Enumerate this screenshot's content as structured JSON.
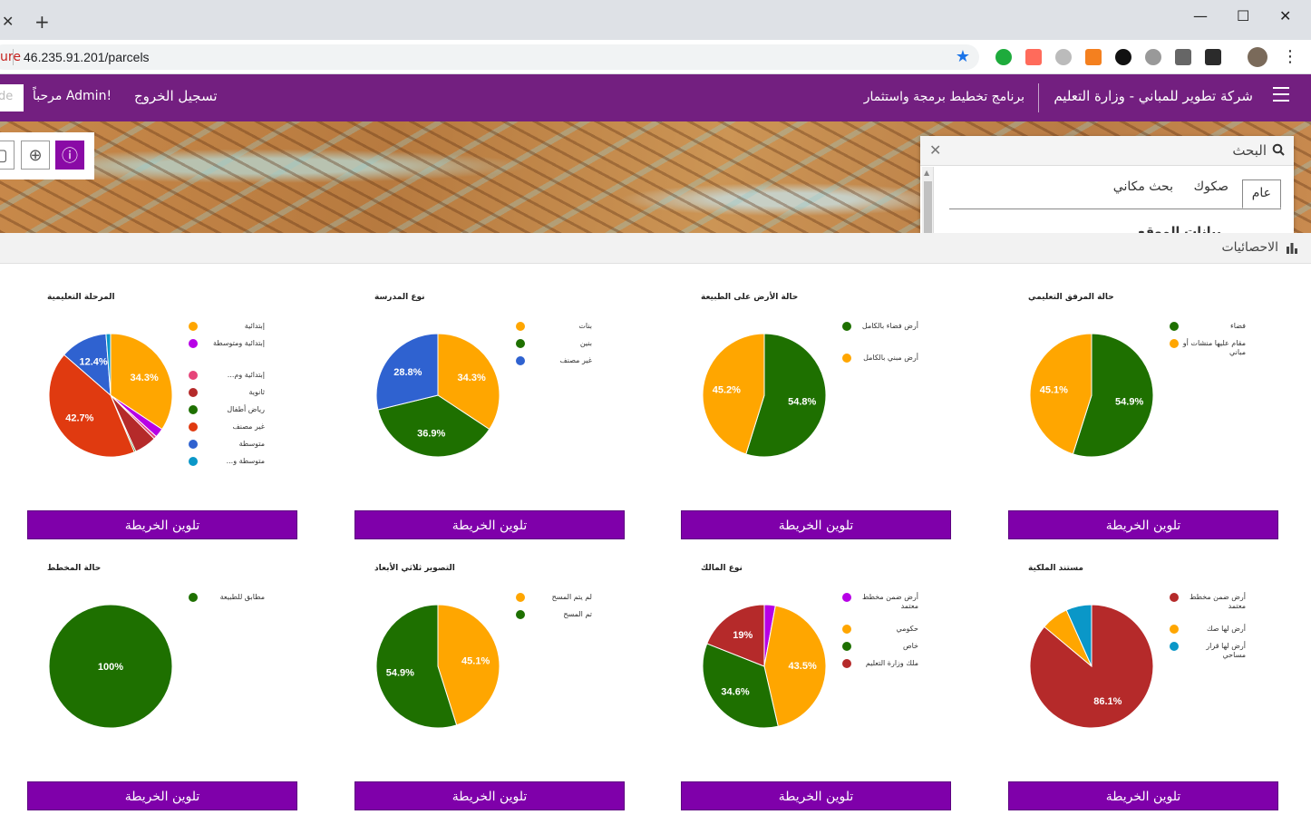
{
  "browser": {
    "tab_close": "✕",
    "new_tab": "+",
    "minimize": "—",
    "maximize": "☐",
    "close": "✕",
    "security_label": "ure",
    "url": "46.235.91.201/parcels"
  },
  "header": {
    "company": "شركة تطوير للمباني - وزارة التعليم",
    "program": "برنامج تخطيط برمجة واستثمار",
    "logout": "تسجيل الخروج",
    "welcome": "مرحباً Admin!",
    "input_value": "de"
  },
  "search": {
    "title": "البحث",
    "tabs": [
      "عام",
      "صكوك",
      "بحث مكاني"
    ],
    "cut_heading": "بيانات الموقع"
  },
  "stats": {
    "title": "الاحصائيات"
  },
  "colors": {
    "brand": "#731f80",
    "button": "#7f00aa"
  },
  "charts": [
    {
      "title": "حالة المرفق التعليمي",
      "button": "تلوين الخريطة",
      "chart_data": {
        "type": "pie",
        "slices": [
          {
            "label": "فضاء",
            "value": 54.9,
            "color": "#1e7000"
          },
          {
            "label": "مقام عليها منشات أو مباني",
            "value": 45.1,
            "color": "#ffa600"
          }
        ]
      }
    },
    {
      "title": "حالة الأرض على الطبيعة",
      "button": "تلوين الخريطة",
      "chart_data": {
        "type": "pie",
        "slices": [
          {
            "label": "أرض فضاء بالكامل",
            "value": 54.8,
            "color": "#1e7000"
          },
          {
            "label": "أرض مبني بالكامل",
            "value": 45.2,
            "color": "#ffa600"
          }
        ]
      }
    },
    {
      "title": "نوع المدرسة",
      "button": "تلوين الخريطة",
      "chart_data": {
        "type": "pie",
        "slices": [
          {
            "label": "بنات",
            "value": 34.3,
            "color": "#ffa600"
          },
          {
            "label": "بنين",
            "value": 36.9,
            "color": "#1e7000"
          },
          {
            "label": "غير مصنف",
            "value": 28.8,
            "color": "#2f62d0"
          }
        ]
      }
    },
    {
      "title": "المرحلة التعليمية",
      "button": "تلوين الخريطة",
      "chart_data": {
        "type": "pie",
        "slices": [
          {
            "label": "إبتدائية",
            "value": 34.3,
            "color": "#ffa600"
          },
          {
            "label": "إبتدائية ومتوسطة",
            "value": 2.4,
            "color": "#b700e6"
          },
          {
            "label": "إبتدائية وم...",
            "value": 0.8,
            "color": "#e6457a"
          },
          {
            "label": "ثانوية",
            "value": 5.8,
            "color": "#b52a2a"
          },
          {
            "label": "رياض أطفال",
            "value": 0.4,
            "color": "#1e7000"
          },
          {
            "label": "غير مصنف",
            "value": 42.7,
            "color": "#e03a10"
          },
          {
            "label": "متوسطة",
            "value": 12.4,
            "color": "#2f62d0"
          },
          {
            "label": "متوسطة و...",
            "value": 1.2,
            "color": "#0a97c8"
          }
        ]
      }
    },
    {
      "title": "مستند الملكية",
      "button": "تلوين الخريطة",
      "chart_data": {
        "type": "pie",
        "slices": [
          {
            "label": "أرض ضمن مخطط معتمد",
            "value": 86.1,
            "color": "#b52a2a"
          },
          {
            "label": "أرض لها صك",
            "value": 7.2,
            "color": "#ffa600"
          },
          {
            "label": "أرض لها قرار مساحي",
            "value": 6.7,
            "color": "#0a97c8"
          }
        ]
      }
    },
    {
      "title": "نوع المالك",
      "button": "تلوين الخريطة",
      "chart_data": {
        "type": "pie",
        "slices": [
          {
            "label": "أرض ضمن مخطط معتمد",
            "value": 2.9,
            "color": "#b700e6"
          },
          {
            "label": "حكومي",
            "value": 43.5,
            "color": "#ffa600"
          },
          {
            "label": "خاص",
            "value": 34.6,
            "color": "#1e7000"
          },
          {
            "label": "ملك وزارة التعليم",
            "value": 19.0,
            "color": "#b52a2a"
          }
        ]
      }
    },
    {
      "title": "التصوير ثلاثي الأبعاد",
      "button": "تلوين الخريطة",
      "chart_data": {
        "type": "pie",
        "slices": [
          {
            "label": "لم يتم المسح",
            "value": 45.1,
            "color": "#ffa600"
          },
          {
            "label": "تم المسح",
            "value": 54.9,
            "color": "#1e7000"
          }
        ]
      }
    },
    {
      "title": "حالة المخطط",
      "button": "تلوين الخريطة",
      "chart_data": {
        "type": "pie",
        "slices": [
          {
            "label": "مطابق للطبيعة",
            "value": 100,
            "color": "#1e7000"
          }
        ]
      }
    }
  ]
}
